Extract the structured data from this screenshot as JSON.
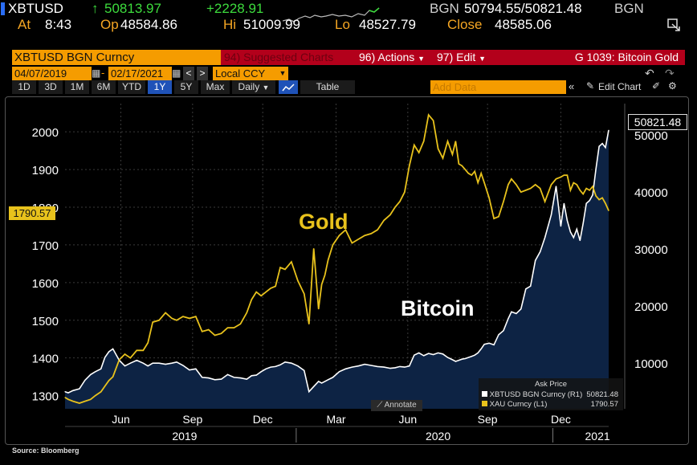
{
  "header": {
    "ticker": "XBTUSD",
    "last": "50813.97",
    "change": "+2228.91",
    "bgn_label1": "BGN",
    "bid_ask": "50794.55/50821.48",
    "bgn_label2": "BGN",
    "at_label": "At",
    "at_time": "8:43",
    "open_label": "Op",
    "open_value": "48584.86",
    "hi_label": "Hi",
    "hi_value": "51009.99",
    "lo_label": "Lo",
    "lo_value": "48527.79",
    "close_label": "Close",
    "close_value": "48585.06"
  },
  "toolbar": {
    "security": "XBTUSD BGN Curncy",
    "suggested": "94) Suggested Charts",
    "actions": "96) Actions",
    "edit": "97) Edit",
    "chart_name": "G 1039: Bitcoin Gold",
    "start_date": "04/07/2019",
    "end_date": "02/17/2021",
    "currency": "Local CCY",
    "periods": [
      "1D",
      "3D",
      "1M",
      "6M",
      "YTD",
      "1Y",
      "5Y",
      "Max"
    ],
    "frequency": "Daily",
    "table": "Table",
    "add_data": "Add Data",
    "edit_chart": "Edit Chart"
  },
  "colors": {
    "gold": "#e8c21c",
    "bitcoin": "#ffffff",
    "area": "#0d2344",
    "amber": "#f59c00"
  },
  "chart_data": {
    "type": "line",
    "left_axis": {
      "ticks": [
        1300,
        1400,
        1500,
        1600,
        1700,
        1800,
        1900,
        2000
      ],
      "range": [
        1265,
        2075
      ]
    },
    "right_axis": {
      "ticks": [
        10000,
        20000,
        30000,
        40000,
        50000
      ],
      "range": [
        2000,
        55500
      ]
    },
    "x_ticks": [
      "Jun",
      "Sep",
      "Dec",
      "Mar",
      "Jun",
      "Sep",
      "Dec"
    ],
    "year_labels": [
      "2019",
      "2020",
      "2021"
    ],
    "series": [
      {
        "name": "XAU Curncy (L1)",
        "axis": "left",
        "last": "1790.57",
        "x": [
          0,
          4,
          10,
          18,
          25,
          32,
          38,
          45,
          50,
          55,
          60,
          68,
          75,
          82,
          90,
          98,
          104,
          110,
          118,
          126,
          134,
          140,
          148,
          156,
          164,
          172,
          180,
          188,
          196,
          204,
          212,
          220,
          228,
          234,
          240,
          246,
          252,
          258,
          264,
          270,
          276,
          284,
          292,
          300,
          306,
          312,
          318,
          322,
          326,
          330,
          336,
          344,
          352,
          360,
          368,
          376,
          384,
          392,
          400,
          408,
          414,
          420,
          426,
          432,
          438,
          444,
          450,
          456,
          462,
          468,
          474,
          480,
          486,
          490,
          494,
          498,
          502,
          506,
          510,
          514,
          518,
          522,
          526,
          532,
          538,
          544,
          550,
          556,
          560,
          566,
          572,
          578,
          584,
          590,
          596,
          602,
          610,
          616,
          622,
          626,
          630,
          634,
          638,
          642,
          646,
          650,
          654,
          658,
          662,
          666,
          670,
          674,
          678,
          682
        ],
        "y": [
          1295,
          1290,
          1285,
          1280,
          1285,
          1290,
          1300,
          1310,
          1325,
          1340,
          1350,
          1395,
          1410,
          1400,
          1420,
          1420,
          1440,
          1495,
          1500,
          1520,
          1505,
          1500,
          1510,
          1505,
          1510,
          1470,
          1475,
          1460,
          1465,
          1480,
          1480,
          1490,
          1520,
          1555,
          1575,
          1565,
          1575,
          1585,
          1590,
          1640,
          1635,
          1655,
          1605,
          1570,
          1490,
          1690,
          1530,
          1595,
          1620,
          1660,
          1700,
          1725,
          1740,
          1705,
          1715,
          1725,
          1730,
          1740,
          1765,
          1780,
          1800,
          1815,
          1840,
          1910,
          1965,
          1945,
          1975,
          2045,
          2030,
          1955,
          1930,
          1975,
          1940,
          1975,
          1915,
          1910,
          1900,
          1890,
          1885,
          1895,
          1865,
          1890,
          1865,
          1825,
          1770,
          1775,
          1815,
          1860,
          1875,
          1860,
          1840,
          1845,
          1850,
          1860,
          1850,
          1815,
          1860,
          1875,
          1880,
          1885,
          1885,
          1845,
          1865,
          1860,
          1845,
          1835,
          1850,
          1845,
          1855,
          1830,
          1820,
          1825,
          1810,
          1791
        ]
      },
      {
        "name": "XBTUSD BGN Curncy (R1)",
        "axis": "right",
        "last": "50821.48",
        "x": [
          0,
          4,
          10,
          18,
          25,
          32,
          38,
          45,
          50,
          55,
          60,
          68,
          75,
          82,
          90,
          98,
          104,
          110,
          118,
          126,
          134,
          140,
          148,
          156,
          164,
          172,
          180,
          188,
          196,
          204,
          212,
          220,
          228,
          234,
          240,
          246,
          252,
          258,
          264,
          270,
          276,
          284,
          292,
          300,
          306,
          312,
          318,
          322,
          326,
          330,
          336,
          344,
          352,
          360,
          368,
          376,
          384,
          392,
          400,
          408,
          414,
          420,
          426,
          432,
          438,
          444,
          450,
          456,
          462,
          468,
          474,
          480,
          486,
          490,
          494,
          498,
          502,
          506,
          510,
          514,
          518,
          522,
          526,
          532,
          538,
          544,
          550,
          556,
          560,
          566,
          572,
          578,
          584,
          590,
          596,
          602,
          610,
          616,
          622,
          626,
          630,
          634,
          638,
          642,
          646,
          650,
          654,
          658,
          662,
          666,
          670,
          674,
          678,
          682
        ],
        "y": [
          5000,
          4800,
          5200,
          5500,
          7000,
          8000,
          8500,
          9000,
          11000,
          12000,
          12500,
          10500,
          9500,
          10000,
          10500,
          10000,
          9500,
          10000,
          10000,
          9800,
          10000,
          10200,
          9600,
          8800,
          9000,
          7500,
          7400,
          7100,
          7200,
          8000,
          7500,
          7400,
          7200,
          7800,
          7900,
          8500,
          9000,
          9300,
          9400,
          9700,
          10200,
          10000,
          9500,
          8700,
          5000,
          5900,
          6800,
          6500,
          6800,
          7100,
          7500,
          8500,
          9000,
          9300,
          9500,
          9800,
          9600,
          9400,
          9300,
          9100,
          9200,
          9400,
          9300,
          9500,
          11400,
          11800,
          11300,
          11700,
          11500,
          11800,
          11600,
          11000,
          10600,
          10300,
          10500,
          10700,
          10800,
          11000,
          11200,
          11400,
          11800,
          12500,
          13300,
          13500,
          13200,
          15000,
          15700,
          17800,
          19000,
          18700,
          19500,
          23000,
          23500,
          28000,
          29500,
          32000,
          36000,
          41000,
          34000,
          38000,
          35000,
          33000,
          32000,
          33500,
          31500,
          34500,
          38000,
          38500,
          39500,
          44000,
          48000,
          48500,
          47800,
          50821
        ]
      }
    ],
    "annotations": {
      "gold_label": "Gold",
      "bitcoin_label": "Bitcoin"
    },
    "legend": {
      "title": "Ask Price",
      "items": [
        {
          "label": "XBTUSD BGN Curncy (R1)",
          "value": "50821.48"
        },
        {
          "label": "XAU Curncy (L1)",
          "value": "1790.57"
        }
      ],
      "placement": "bottom-right"
    },
    "annotate_button": "Annotate",
    "last_labels": {
      "left": "1790.57",
      "right": "50821.48"
    }
  },
  "footer": {
    "source": "Source: Bloomberg"
  }
}
